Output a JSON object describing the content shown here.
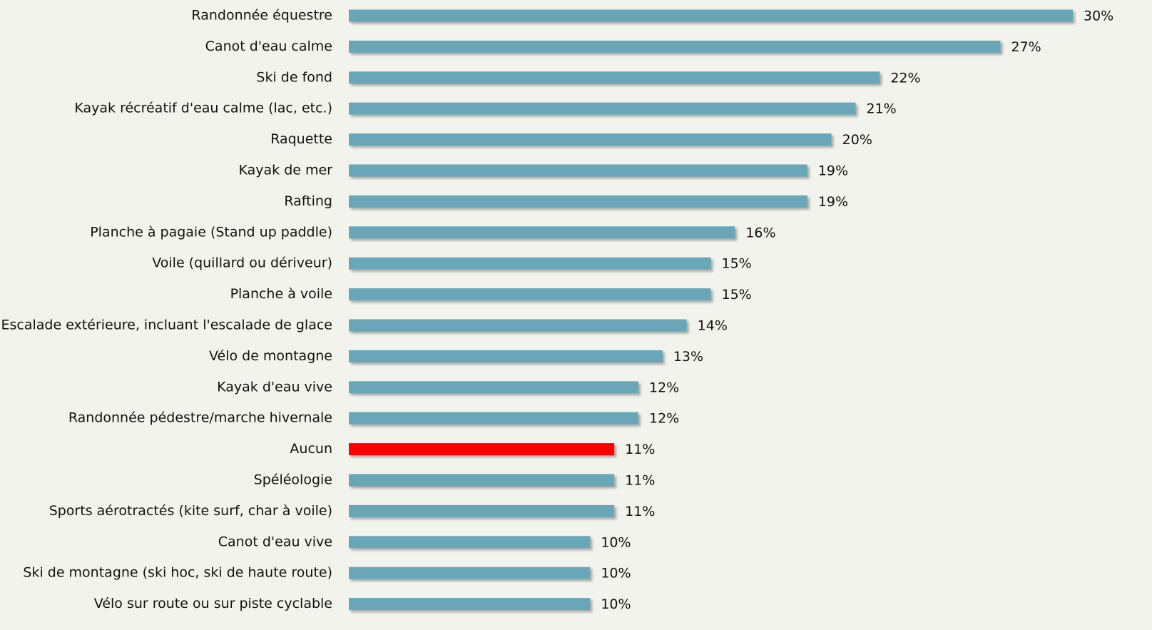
{
  "chart_data": {
    "type": "bar",
    "orientation": "horizontal",
    "categories": [
      "Randonnée équestre",
      "Canot d'eau calme",
      "Ski de fond",
      "Kayak récréatif d'eau calme (lac, etc.)",
      "Raquette",
      "Kayak de mer",
      "Rafting",
      "Planche à pagaie (Stand up paddle)",
      "Voile (quillard ou dériveur)",
      "Planche à voile",
      "Escalade extérieure, incluant l'escalade de glace",
      "Vélo de montagne",
      "Kayak d'eau vive",
      "Randonnée pédestre/marche hivernale",
      "Aucun",
      "Spéléologie",
      "Sports aérotractés (kite surf, char à voile)",
      "Canot d'eau vive",
      "Ski de montagne (ski hoc, ski de haute route)",
      "Vélo sur route ou sur piste cyclable"
    ],
    "values": [
      30,
      27,
      22,
      21,
      20,
      19,
      19,
      16,
      15,
      15,
      14,
      13,
      12,
      12,
      11,
      11,
      11,
      10,
      10,
      10
    ],
    "value_labels": [
      "30%",
      "27%",
      "22%",
      "21%",
      "20%",
      "19%",
      "19%",
      "16%",
      "15%",
      "15%",
      "14%",
      "13%",
      "12%",
      "12%",
      "11%",
      "11%",
      "11%",
      "10%",
      "10%",
      "10%"
    ],
    "colors": [
      "#67a6b8",
      "#67a6b8",
      "#67a6b8",
      "#67a6b8",
      "#67a6b8",
      "#67a6b8",
      "#67a6b8",
      "#67a6b8",
      "#67a6b8",
      "#67a6b8",
      "#67a6b8",
      "#67a6b8",
      "#67a6b8",
      "#67a6b8",
      "#ff0000",
      "#67a6b8",
      "#67a6b8",
      "#67a6b8",
      "#67a6b8",
      "#67a6b8"
    ]
  }
}
